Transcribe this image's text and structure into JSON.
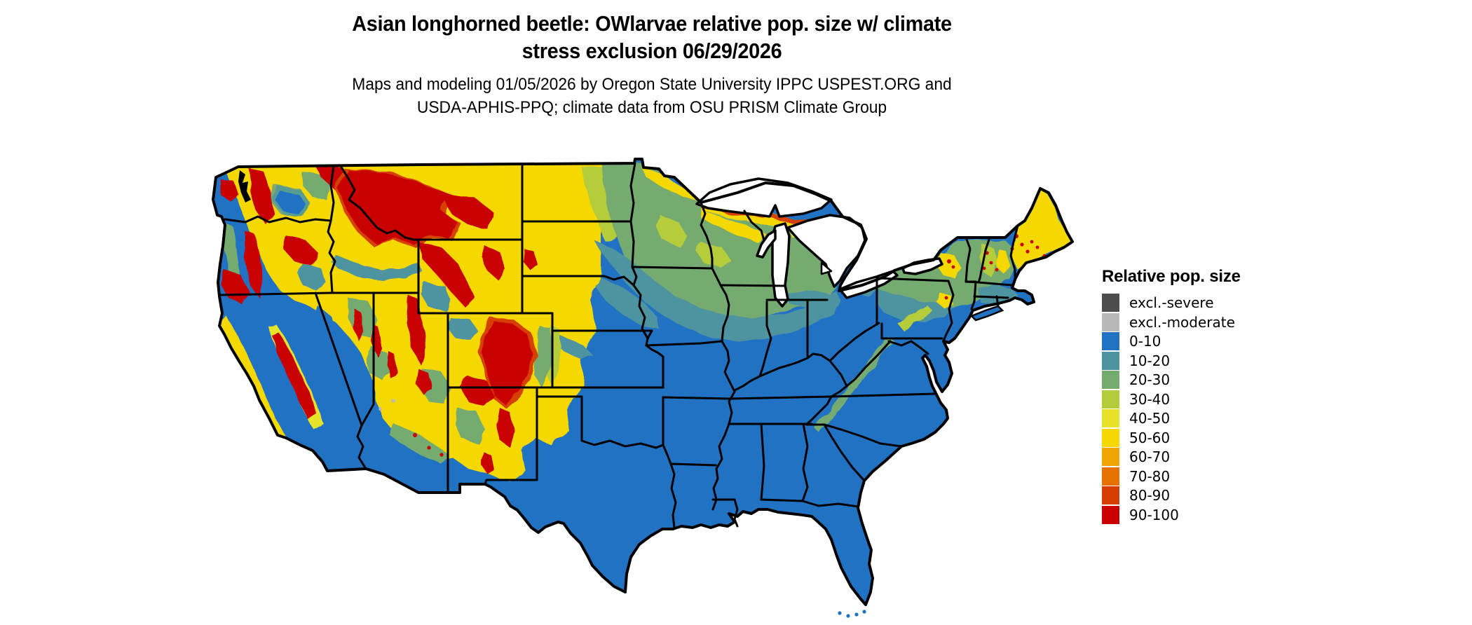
{
  "title": {
    "line1": "Asian longhorned beetle: OWlarvae relative pop. size w/ climate",
    "line2": "stress exclusion 06/29/2026"
  },
  "subtitle": {
    "line1": "Maps and modeling 01/05/2026 by Oregon State University IPPC USPEST.ORG and",
    "line2": "USDA-APHIS-PPQ; climate data from OSU PRISM Climate Group"
  },
  "legend": {
    "title": "Relative pop. size",
    "items": [
      {
        "label": "excl.-severe",
        "color": "#4d4d4d"
      },
      {
        "label": "excl.-moderate",
        "color": "#b9b9b9"
      },
      {
        "label": "0-10",
        "color": "#2272c3"
      },
      {
        "label": "10-20",
        "color": "#4e94a0"
      },
      {
        "label": "20-30",
        "color": "#74ab6f"
      },
      {
        "label": "30-40",
        "color": "#b5cc3a"
      },
      {
        "label": "40-50",
        "color": "#e7e32b"
      },
      {
        "label": "50-60",
        "color": "#f5d800"
      },
      {
        "label": "60-70",
        "color": "#f0a500"
      },
      {
        "label": "70-80",
        "color": "#e87200"
      },
      {
        "label": "80-90",
        "color": "#d63f00"
      },
      {
        "label": "90-100",
        "color": "#c90000"
      }
    ]
  },
  "map": {
    "type": "choropleth-raster",
    "area": "Continental United States with state boundaries",
    "pattern_summary": {
      "east_and_south": "0-10 (blue): TX, OK, KS-south, MO, IL, IN, OH, KY, TN, all Gulf and Atlantic southeast states, FL",
      "upper_midwest": "20-30 green across ND/MN/WI/MI with 10-20 teal band across SD/NE/IA-north/WI-south/MI-south",
      "northern_tier": "50-60 yellow along Canadian border, MN arrowhead, Michigan UP, and Maine",
      "west": "40-60 yellow base across MT/WY/ID/NV/UT/CO/OR/WA highlands with 90-100 red over Cascades, Olympics, Sierra Nevada, Northern Rockies, Wasatch, Colorado Rockies and Sangre de Cristo",
      "valleys": "0-10 blue in Columbia Basin, Snake River Plain edges, California Central Valley, SoCal deserts, AZ/NM lowlands",
      "northeast": "20-40 green with yellow Adirondacks/Catskills and red speckles in ME/NH/VT",
      "appalachians": "narrow 20-40 green-yellow streak from PA through WV to NC/TN",
      "rare_exclusion_pixels": "tiny excl.-moderate gray specks in the desert southwest"
    }
  }
}
